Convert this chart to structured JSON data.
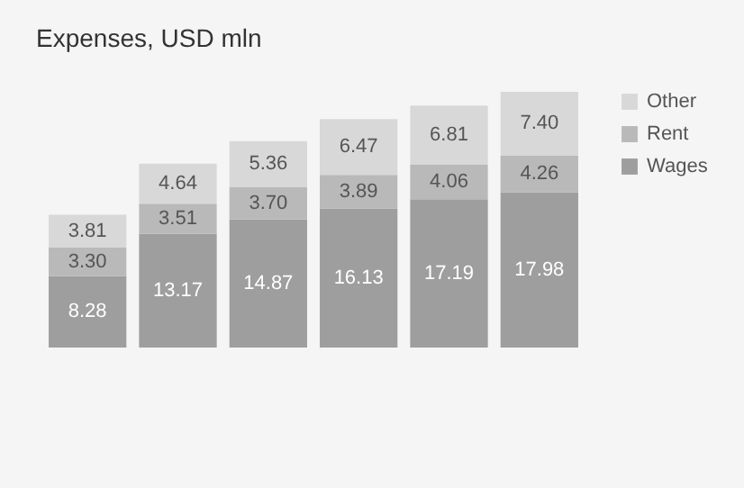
{
  "chart_data": {
    "type": "bar",
    "title": "Expenses, USD mln",
    "categories": [
      null,
      null,
      null,
      null,
      null,
      null
    ],
    "stacked": true,
    "legend": "right",
    "series": [
      {
        "name": "Wages",
        "color": "#9e9e9e",
        "values": [
          8.28,
          13.17,
          14.87,
          16.13,
          17.19,
          17.98
        ],
        "value_labels": [
          "8.28",
          "13.17",
          "14.87",
          "16.13",
          "17.19",
          "17.98"
        ]
      },
      {
        "name": "Rent",
        "color": "#b9b9b9",
        "values": [
          3.3,
          3.51,
          3.7,
          3.89,
          4.06,
          4.26
        ],
        "value_labels": [
          "3.30",
          "3.51",
          "3.70",
          "3.89",
          "4.06",
          "4.26"
        ]
      },
      {
        "name": "Other",
        "color": "#d8d8d8",
        "values": [
          3.81,
          4.64,
          5.36,
          6.47,
          6.81,
          7.4
        ],
        "value_labels": [
          "3.81",
          "4.64",
          "5.36",
          "6.47",
          "6.81",
          "7.40"
        ]
      }
    ]
  }
}
